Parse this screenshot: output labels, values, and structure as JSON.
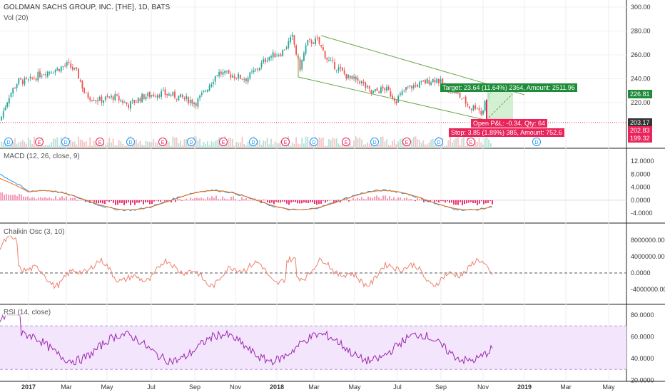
{
  "header": {
    "title": "GOLDMAN SACHS GROUP, INC. [THE], 1D, BATS",
    "volume_label": "Vol (20)"
  },
  "price_panel": {
    "y_ticks": [
      "300.00",
      "280.00",
      "260.00",
      "240.00",
      "220.00"
    ],
    "price_tags": [
      {
        "text": "226.81",
        "bg": "#1e8c3a"
      },
      {
        "text": "203.17",
        "bg": "#333333"
      },
      {
        "text": "202.83",
        "bg": "#e8245a"
      },
      {
        "text": "199.32",
        "bg": "#e8245a"
      }
    ],
    "target_label": "Target: 23.64 (11.64%) 2364, Amount: 2511.96",
    "open_pl_label": "Open P&L: -0.34, Qty: 64",
    "stop_label": "Stop: 3.85 (1.89%) 385, Amount: 752.6",
    "event_markers": [
      "D",
      "E",
      "D",
      "E",
      "D",
      "E",
      "D",
      "E",
      "D",
      "E",
      "D",
      "E",
      "D",
      "E",
      "D",
      "E",
      "D",
      "E",
      "E"
    ]
  },
  "macd_panel": {
    "label": "MACD (12, 26, close, 9)",
    "y_ticks": [
      "12.0000",
      "8.0000",
      "4.0000",
      "0.0000",
      "-4.0000"
    ]
  },
  "chaikin_panel": {
    "label": "Chaikin Osc (3, 10)",
    "y_ticks": [
      "8000000.0000",
      "4000000.0000",
      "0.0000",
      "-4000000.0000"
    ]
  },
  "rsi_panel": {
    "label": "RSI (14, close)",
    "y_ticks": [
      "80.0000",
      "60.0000",
      "40.0000",
      "20.0000"
    ]
  },
  "x_axis": {
    "labels": [
      "2017",
      "Mar",
      "May",
      "Jul",
      "Sep",
      "Nov",
      "2018",
      "Mar",
      "May",
      "Jul",
      "Sep",
      "Nov",
      "2019",
      "Mar",
      "May"
    ]
  },
  "colors": {
    "up": "#26a69a",
    "down": "#ef5350",
    "macd_line": "#2196f3",
    "signal_line": "#ff6d00",
    "chaikin": "#f08070",
    "rsi": "#9c27b0",
    "rsi_band": "#f3e5fb",
    "channel": "#6aa84f"
  },
  "chart_data": {
    "type": "line",
    "x": [
      "2017-01",
      "2017-02",
      "2017-03",
      "2017-04",
      "2017-05",
      "2017-06",
      "2017-07",
      "2017-08",
      "2017-09",
      "2017-10",
      "2017-11",
      "2017-12",
      "2018-01",
      "2018-02",
      "2018-03",
      "2018-04",
      "2018-05",
      "2018-06",
      "2018-07",
      "2018-08",
      "2018-09",
      "2018-10",
      "2018-11"
    ],
    "series": [
      {
        "name": "close",
        "values": [
          235,
          242,
          240,
          222,
          222,
          220,
          225,
          222,
          225,
          242,
          244,
          252,
          258,
          270,
          262,
          248,
          230,
          222,
          235,
          230,
          236,
          220,
          228
        ]
      }
    ],
    "macd_note": "MACD/Chaikin/RSI panels drawn as oscillators",
    "rsi_band": [
      30,
      70
    ],
    "ylim": [
      195,
      305
    ]
  }
}
